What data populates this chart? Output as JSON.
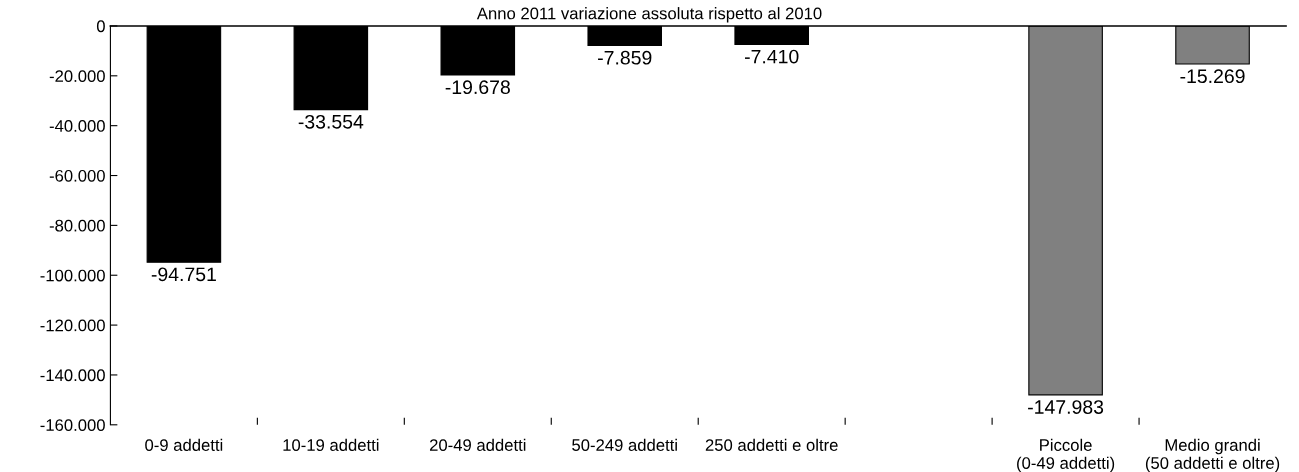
{
  "chart_data": {
    "type": "bar",
    "title": "Anno 2011 variazione assoluta rispetto al 2010",
    "categories": [
      "0-9 addetti",
      "10-19 addetti",
      "20-49 addetti",
      "50-249 addetti",
      "250 addetti e oltre",
      null,
      "Piccole\n(0-49 addetti)",
      "Medio grandi\n(50 addetti e oltre)"
    ],
    "values": [
      -94751,
      -33554,
      -19678,
      -7859,
      -7410,
      null,
      -147983,
      -15269
    ],
    "colors": [
      "#000000",
      "#000000",
      "#000000",
      "#000000",
      "#000000",
      null,
      "#808080",
      "#808080"
    ],
    "value_labels": [
      "-94.751",
      "-33.554",
      "-19.678",
      "-7.859",
      "-7.410",
      null,
      "-147.983",
      "-15.269"
    ],
    "ylim": [
      -160000,
      0
    ],
    "yticks": [
      {
        "value": 0,
        "label": "0"
      },
      {
        "value": -20000,
        "label": "-20.000"
      },
      {
        "value": -40000,
        "label": "-40.000"
      },
      {
        "value": -60000,
        "label": "-60.000"
      },
      {
        "value": -80000,
        "label": "-80.000"
      },
      {
        "value": -100000,
        "label": "-100.000"
      },
      {
        "value": -120000,
        "label": "-120.000"
      },
      {
        "value": -140000,
        "label": "-140.000"
      },
      {
        "value": -160000,
        "label": "-160.000"
      }
    ],
    "grid": false,
    "legend": false
  }
}
